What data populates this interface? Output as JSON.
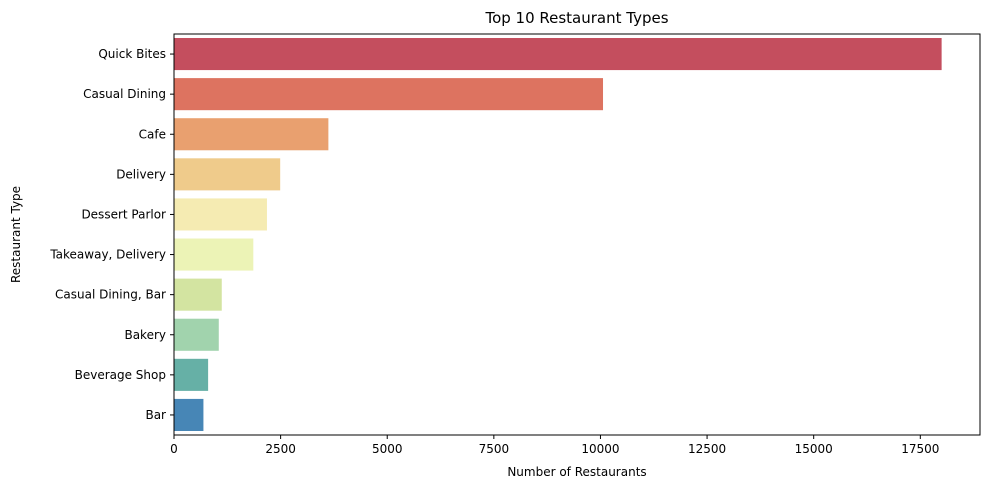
{
  "chart_data": {
    "type": "bar",
    "orientation": "horizontal",
    "title": "Top 10 Restaurant Types",
    "xlabel": "Number of Restaurants",
    "ylabel": "Restaurant Type",
    "xlim": [
      0,
      18900
    ],
    "xticks": [
      0,
      2500,
      5000,
      7500,
      10000,
      12500,
      15000,
      17500
    ],
    "grid": false,
    "categories": [
      "Quick Bites",
      "Casual Dining",
      "Cafe",
      "Delivery",
      "Dessert Parlor",
      "Takeaway, Delivery",
      "Casual Dining, Bar",
      "Bakery",
      "Beverage Shop",
      "Bar"
    ],
    "values": [
      18000,
      10060,
      3620,
      2490,
      2180,
      1860,
      1120,
      1050,
      800,
      690
    ],
    "colors": [
      "#c44e5e",
      "#dd7360",
      "#e9a06f",
      "#efcb8b",
      "#f5ebb2",
      "#ecf3b6",
      "#d3e4a1",
      "#a1d3ad",
      "#66b0a6",
      "#4786b6"
    ]
  }
}
